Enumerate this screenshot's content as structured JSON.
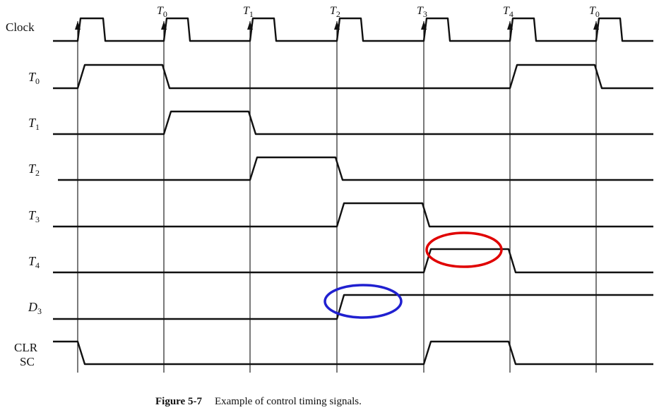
{
  "signals": [
    {
      "id": "clock",
      "label": "Clock",
      "sub": ""
    },
    {
      "id": "t0",
      "label": "T",
      "sub": "0"
    },
    {
      "id": "t1",
      "label": "T",
      "sub": "1"
    },
    {
      "id": "t2",
      "label": "T",
      "sub": "2"
    },
    {
      "id": "t3",
      "label": "T",
      "sub": "3"
    },
    {
      "id": "t4",
      "label": "T",
      "sub": "4"
    },
    {
      "id": "d3",
      "label": "D",
      "sub": "3"
    },
    {
      "id": "clrsc",
      "label": "CLR",
      "label2": "SC",
      "sub": ""
    }
  ],
  "edge_labels": [
    {
      "label": "T",
      "sub": "0"
    },
    {
      "label": "T",
      "sub": "1"
    },
    {
      "label": "T",
      "sub": "2"
    },
    {
      "label": "T",
      "sub": "3"
    },
    {
      "label": "T",
      "sub": "4"
    },
    {
      "label": "T",
      "sub": "0"
    }
  ],
  "highlights": [
    {
      "name": "t4-highlight",
      "color": "#e00000"
    },
    {
      "name": "d3-highlight",
      "color": "#2020d0"
    }
  ],
  "caption": {
    "figure": "Figure 5-7",
    "text": "Example of control timing signals."
  }
}
